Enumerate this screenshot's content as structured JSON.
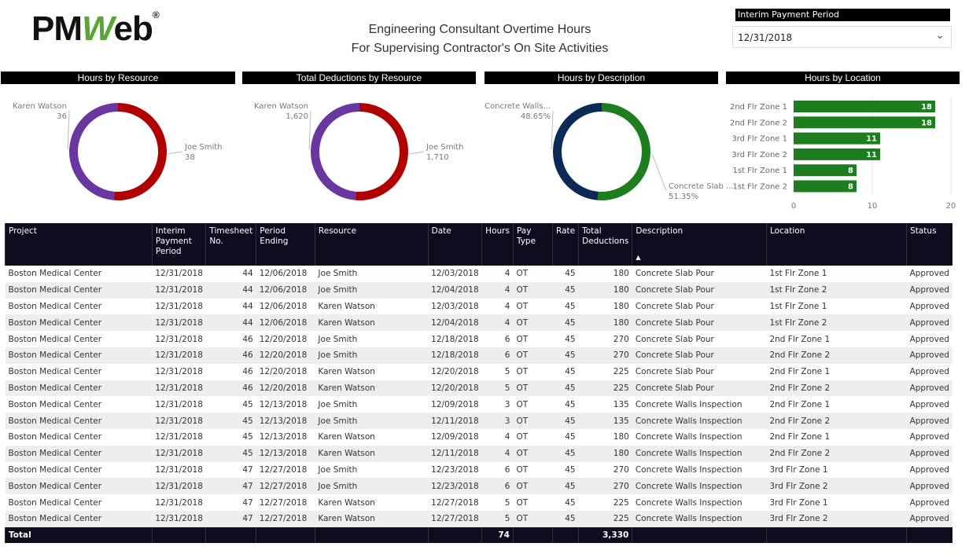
{
  "logo": {
    "text": "PMWeb"
  },
  "header": {
    "title_line1": "Engineering Consultant Overtime Hours",
    "title_line2": "For Supervising Contractor's On Site Activities"
  },
  "slicer": {
    "label": "Interim Payment Period",
    "value": "12/31/2018",
    "icon": "chevron-down-icon"
  },
  "visuals": {
    "hours_by_resource": "Hours by Resource",
    "deductions_by_resource": "Total Deductions by Resource",
    "hours_by_description": "Hours by Description",
    "hours_by_location": "Hours by Location"
  },
  "chart_data": [
    {
      "type": "pie",
      "title": "Hours by Resource",
      "categories": [
        "Joe Smith",
        "Karen Watson"
      ],
      "values": [
        38,
        36
      ],
      "labels": [
        "38",
        "36"
      ],
      "colors": [
        "#b00000",
        "#6a36a0"
      ]
    },
    {
      "type": "pie",
      "title": "Total Deductions by Resource",
      "categories": [
        "Joe Smith",
        "Karen Watson"
      ],
      "values": [
        1710,
        1620
      ],
      "labels": [
        "1,710",
        "1,620"
      ],
      "colors": [
        "#b00000",
        "#6a36a0"
      ]
    },
    {
      "type": "pie",
      "title": "Hours by Description",
      "categories": [
        "Concrete Slab ...",
        "Concrete Walls..."
      ],
      "values": [
        51.35,
        48.65
      ],
      "labels": [
        "51.35%",
        "48.65%"
      ],
      "colors": [
        "#1e7d1e",
        "#0b2a55"
      ]
    },
    {
      "type": "bar",
      "title": "Hours by Location",
      "categories": [
        "2nd Flr Zone 1",
        "2nd Flr Zone 2",
        "3rd Flr Zone 1",
        "3rd Flr Zone 2",
        "1st Flr Zone 1",
        "1st Flr Zone 2"
      ],
      "values": [
        18,
        18,
        11,
        11,
        8,
        8
      ],
      "xlim": [
        0,
        20
      ],
      "xticks": [
        "0",
        "10",
        "20"
      ],
      "grid": true,
      "color": "#1e7d1e"
    }
  ],
  "table": {
    "headers": [
      "Project",
      "Interim Payment Period",
      "Timesheet No.",
      "Period Ending",
      "Resource",
      "Date",
      "Hours",
      "Pay Type",
      "Rate",
      "Total Deductions",
      "Description",
      "Location",
      "Status"
    ],
    "sort_indicator": "▲",
    "rows": [
      [
        "Boston Medical Center",
        "12/31/2018",
        "44",
        "12/06/2018",
        "Joe Smith",
        "12/03/2018",
        "4",
        "OT",
        "45",
        "180",
        "Concrete Slab Pour",
        "1st Flr Zone 1",
        "Approved"
      ],
      [
        "Boston Medical Center",
        "12/31/2018",
        "44",
        "12/06/2018",
        "Joe Smith",
        "12/04/2018",
        "4",
        "OT",
        "45",
        "180",
        "Concrete Slab Pour",
        "1st Flr Zone 2",
        "Approved"
      ],
      [
        "Boston Medical Center",
        "12/31/2018",
        "44",
        "12/06/2018",
        "Karen Watson",
        "12/03/2018",
        "4",
        "OT",
        "45",
        "180",
        "Concrete Slab Pour",
        "1st Flr Zone 1",
        "Approved"
      ],
      [
        "Boston Medical Center",
        "12/31/2018",
        "44",
        "12/06/2018",
        "Karen Watson",
        "12/04/2018",
        "4",
        "OT",
        "45",
        "180",
        "Concrete Slab Pour",
        "1st Flr Zone 2",
        "Approved"
      ],
      [
        "Boston Medical Center",
        "12/31/2018",
        "46",
        "12/20/2018",
        "Joe Smith",
        "12/18/2018",
        "6",
        "OT",
        "45",
        "270",
        "Concrete Slab Pour",
        "2nd Flr Zone 1",
        "Approved"
      ],
      [
        "Boston Medical Center",
        "12/31/2018",
        "46",
        "12/20/2018",
        "Joe Smith",
        "12/18/2018",
        "6",
        "OT",
        "45",
        "270",
        "Concrete Slab Pour",
        "2nd Flr Zone 2",
        "Approved"
      ],
      [
        "Boston Medical Center",
        "12/31/2018",
        "46",
        "12/20/2018",
        "Karen Watson",
        "12/20/2018",
        "5",
        "OT",
        "45",
        "225",
        "Concrete Slab Pour",
        "2nd Flr Zone 1",
        "Approved"
      ],
      [
        "Boston Medical Center",
        "12/31/2018",
        "46",
        "12/20/2018",
        "Karen Watson",
        "12/20/2018",
        "5",
        "OT",
        "45",
        "225",
        "Concrete Slab Pour",
        "2nd Flr Zone 2",
        "Approved"
      ],
      [
        "Boston Medical Center",
        "12/31/2018",
        "45",
        "12/13/2018",
        "Joe Smith",
        "12/09/2018",
        "3",
        "OT",
        "45",
        "135",
        "Concrete Walls Inspection",
        "2nd Flr Zone 1",
        "Approved"
      ],
      [
        "Boston Medical Center",
        "12/31/2018",
        "45",
        "12/13/2018",
        "Joe Smith",
        "12/11/2018",
        "3",
        "OT",
        "45",
        "135",
        "Concrete Walls Inspection",
        "2nd Flr Zone 2",
        "Approved"
      ],
      [
        "Boston Medical Center",
        "12/31/2018",
        "45",
        "12/13/2018",
        "Karen Watson",
        "12/09/2018",
        "4",
        "OT",
        "45",
        "180",
        "Concrete Walls Inspection",
        "2nd Flr Zone 1",
        "Approved"
      ],
      [
        "Boston Medical Center",
        "12/31/2018",
        "45",
        "12/13/2018",
        "Karen Watson",
        "12/11/2018",
        "4",
        "OT",
        "45",
        "180",
        "Concrete Walls Inspection",
        "2nd Flr Zone 2",
        "Approved"
      ],
      [
        "Boston Medical Center",
        "12/31/2018",
        "47",
        "12/27/2018",
        "Joe Smith",
        "12/23/2018",
        "6",
        "OT",
        "45",
        "270",
        "Concrete Walls Inspection",
        "3rd Flr Zone 1",
        "Approved"
      ],
      [
        "Boston Medical Center",
        "12/31/2018",
        "47",
        "12/27/2018",
        "Joe Smith",
        "12/23/2018",
        "6",
        "OT",
        "45",
        "270",
        "Concrete Walls Inspection",
        "3rd Flr Zone 2",
        "Approved"
      ],
      [
        "Boston Medical Center",
        "12/31/2018",
        "47",
        "12/27/2018",
        "Karen Watson",
        "12/27/2018",
        "5",
        "OT",
        "45",
        "225",
        "Concrete Walls Inspection",
        "3rd Flr Zone 1",
        "Approved"
      ],
      [
        "Boston Medical Center",
        "12/31/2018",
        "47",
        "12/27/2018",
        "Karen Watson",
        "12/27/2018",
        "5",
        "OT",
        "45",
        "225",
        "Concrete Walls Inspection",
        "3rd Flr Zone 2",
        "Approved"
      ]
    ],
    "total": {
      "label": "Total",
      "hours": "74",
      "total_deductions": "3,330"
    }
  }
}
